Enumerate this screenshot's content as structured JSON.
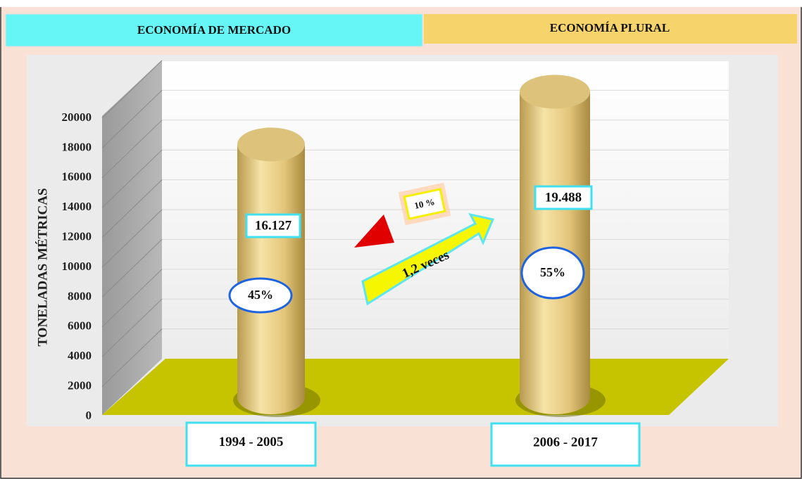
{
  "chart_data": {
    "type": "bar3d",
    "headers": [
      "ECONOMÍA DE MERCADO",
      "ECONOMÍA PLURAL"
    ],
    "y_label": "TONELADAS MÉTRICAS",
    "categories": [
      "1994 - 2005",
      "2006 - 2017"
    ],
    "values": [
      16127,
      19488
    ],
    "value_labels": [
      "16.127",
      "19.488"
    ],
    "share_labels": [
      "45%",
      "55%"
    ],
    "annotations": [
      "10 %",
      "1,2 veces"
    ],
    "color": "#e8cf86",
    "ylim": [
      0,
      20000
    ],
    "yticks": [
      0,
      2000,
      4000,
      6000,
      8000,
      10000,
      12000,
      14000,
      16000,
      18000,
      20000
    ],
    "grid": true
  }
}
